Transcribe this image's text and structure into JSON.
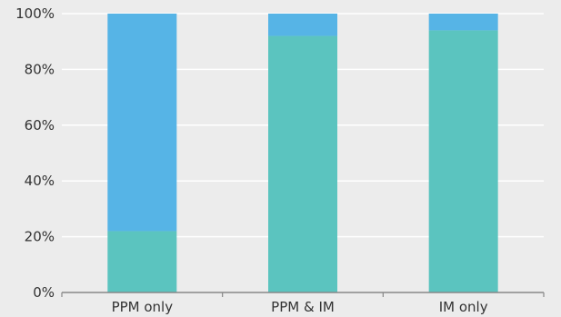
{
  "chart_data": {
    "type": "bar",
    "stacked": true,
    "normalized": true,
    "categories": [
      "PPM only",
      "PPM & IM",
      "IM only"
    ],
    "series": [
      {
        "color": "#5bc4bf",
        "values": [
          22,
          92,
          94
        ]
      },
      {
        "color": "#56b4e6",
        "values": [
          78,
          8,
          6
        ]
      }
    ],
    "ylim": [
      0,
      100
    ],
    "yticks": [
      0,
      20,
      40,
      60,
      80,
      100
    ],
    "ytick_labels": [
      "0%",
      "20%",
      "40%",
      "60%",
      "80%",
      "100%"
    ],
    "grid": true,
    "gridline_color": "#ffffff",
    "axis_color": "#888888",
    "background": "#ececec"
  }
}
